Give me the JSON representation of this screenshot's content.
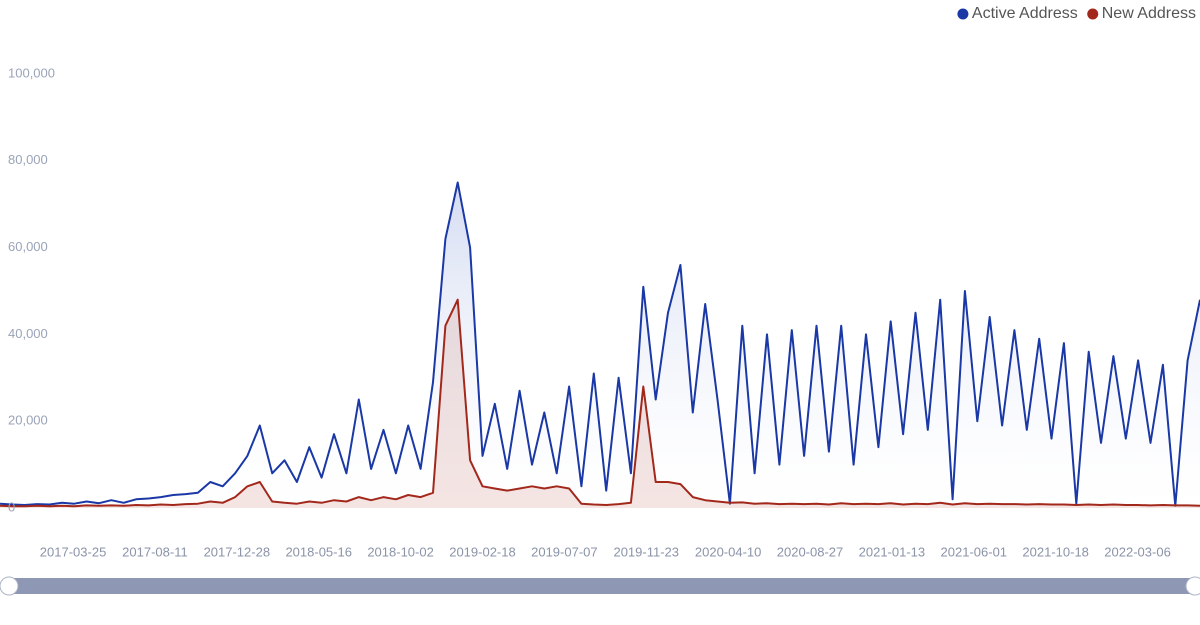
{
  "chart_data": {
    "type": "line",
    "legend": "top-right",
    "grid": false,
    "x": [
      "2016-11-21",
      "2016-12-12",
      "2017-01-02",
      "2017-01-23",
      "2017-02-13",
      "2017-03-06",
      "2017-03-27",
      "2017-04-17",
      "2017-05-08",
      "2017-05-29",
      "2017-06-19",
      "2017-07-10",
      "2017-07-31",
      "2017-08-21",
      "2017-09-11",
      "2017-10-02",
      "2017-10-23",
      "2017-11-13",
      "2017-12-04",
      "2017-12-25",
      "2018-01-15",
      "2018-02-05",
      "2018-02-26",
      "2018-03-19",
      "2018-04-09",
      "2018-04-30",
      "2018-05-21",
      "2018-06-11",
      "2018-07-02",
      "2018-07-23",
      "2018-08-13",
      "2018-09-03",
      "2018-09-24",
      "2018-10-15",
      "2018-11-05",
      "2018-11-26",
      "2018-12-17",
      "2019-01-07",
      "2019-01-28",
      "2019-02-18",
      "2019-03-11",
      "2019-04-01",
      "2019-04-22",
      "2019-05-13",
      "2019-06-03",
      "2019-06-24",
      "2019-07-15",
      "2019-08-05",
      "2019-08-26",
      "2019-09-16",
      "2019-10-07",
      "2019-10-28",
      "2019-11-18",
      "2019-12-09",
      "2019-12-30",
      "2020-01-20",
      "2020-02-10",
      "2020-03-02",
      "2020-03-23",
      "2020-04-13",
      "2020-05-04",
      "2020-05-25",
      "2020-06-15",
      "2020-07-06",
      "2020-07-27",
      "2020-08-17",
      "2020-09-07",
      "2020-09-28",
      "2020-10-19",
      "2020-11-09",
      "2020-11-30",
      "2020-12-21",
      "2021-01-11",
      "2021-02-01",
      "2021-02-22",
      "2021-03-15",
      "2021-04-05",
      "2021-04-26",
      "2021-05-17",
      "2021-06-07",
      "2021-06-28",
      "2021-07-19",
      "2021-08-09",
      "2021-08-30",
      "2021-09-20",
      "2021-10-11",
      "2021-11-01",
      "2021-11-22",
      "2021-12-13",
      "2022-01-03",
      "2022-01-24",
      "2022-02-14",
      "2022-03-07",
      "2022-03-28",
      "2022-04-18",
      "2022-05-09",
      "2022-05-30",
      "2022-06-20"
    ],
    "xticks": [
      "2017-03-25",
      "2017-08-11",
      "2017-12-28",
      "2018-05-16",
      "2018-10-02",
      "2019-02-18",
      "2019-07-07",
      "2019-11-23",
      "2020-04-10",
      "2020-08-27",
      "2021-01-13",
      "2021-06-01",
      "2021-10-18",
      "2022-03-06"
    ],
    "ylim": [
      0,
      100000
    ],
    "yticks": [
      0,
      {
        "value": 20000,
        "label": "20,000"
      },
      {
        "value": 40000,
        "label": "40,000"
      },
      {
        "value": 60000,
        "label": "60,000"
      },
      {
        "value": 80000,
        "label": "80,000"
      },
      {
        "value": 100000,
        "label": "100,000"
      }
    ],
    "series": [
      {
        "name": "Active Address",
        "color": "#1a38a6",
        "values": [
          1000,
          800,
          700,
          900,
          800,
          1200,
          1000,
          1500,
          1100,
          1800,
          1200,
          2000,
          2200,
          2500,
          3000,
          3200,
          3500,
          6000,
          5000,
          8000,
          12000,
          19000,
          8000,
          11000,
          6000,
          14000,
          7000,
          17000,
          8000,
          25000,
          9000,
          18000,
          8000,
          19000,
          9000,
          29000,
          62000,
          75000,
          60000,
          12000,
          24000,
          9000,
          27000,
          10000,
          22000,
          8000,
          28000,
          5000,
          31000,
          4000,
          30000,
          8000,
          51000,
          25000,
          45000,
          56000,
          22000,
          47000,
          25000,
          1000,
          42000,
          8000,
          40000,
          10000,
          41000,
          12000,
          42000,
          13000,
          42000,
          10000,
          40000,
          14000,
          43000,
          17000,
          45000,
          18000,
          48000,
          2000,
          50000,
          20000,
          44000,
          19000,
          41000,
          18000,
          39000,
          16000,
          38000,
          1000,
          36000,
          15000,
          35000,
          16000,
          34000,
          15000,
          33000,
          500,
          34000,
          48000
        ]
      },
      {
        "name": "New Address",
        "color": "#a3281c",
        "values": [
          500,
          400,
          400,
          500,
          400,
          500,
          400,
          600,
          500,
          600,
          500,
          700,
          600,
          800,
          700,
          900,
          1000,
          1500,
          1200,
          2500,
          5000,
          6000,
          1500,
          1200,
          1000,
          1500,
          1200,
          1800,
          1500,
          2500,
          1800,
          2500,
          2000,
          3000,
          2500,
          3500,
          42000,
          48000,
          11000,
          5000,
          4500,
          4000,
          4500,
          5000,
          4500,
          5000,
          4500,
          1000,
          800,
          700,
          900,
          1200,
          28000,
          6000,
          6000,
          5500,
          2500,
          1800,
          1500,
          1200,
          1300,
          1000,
          1100,
          900,
          1000,
          900,
          1000,
          800,
          1100,
          900,
          1000,
          900,
          1100,
          800,
          1000,
          900,
          1200,
          800,
          1100,
          900,
          1000,
          900,
          900,
          800,
          900,
          800,
          800,
          700,
          800,
          700,
          800,
          700,
          700,
          600,
          700,
          600,
          600,
          500
        ]
      }
    ]
  }
}
